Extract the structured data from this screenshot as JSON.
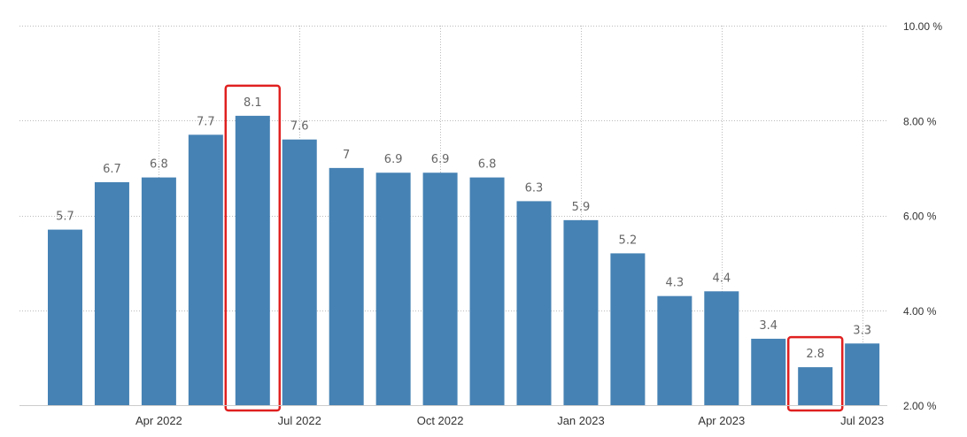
{
  "chart_data": {
    "type": "bar",
    "series": [
      {
        "values": [
          5.7,
          6.7,
          6.8,
          7.7,
          8.1,
          7.6,
          7,
          6.9,
          6.9,
          6.8,
          6.3,
          5.9,
          5.2,
          4.3,
          4.4,
          3.4,
          2.8,
          3.3
        ],
        "labels": [
          "5.7",
          "6.7",
          "6.8",
          "7.7",
          "8.1",
          "7.6",
          "7",
          "6.9",
          "6.9",
          "6.8",
          "6.3",
          "5.9",
          "5.2",
          "4.3",
          "4.4",
          "3.4",
          "2.8",
          "3.3"
        ]
      }
    ],
    "ylim": [
      2,
      10
    ],
    "y_ticks": [
      "10.00 %",
      "8.00 %",
      "6.00 %",
      "4.00 %",
      "2.00 %"
    ],
    "y_tick_values": [
      10,
      8,
      6,
      4,
      2
    ],
    "x_tick_labels": [
      "Apr 2022",
      "Jul 2022",
      "Oct 2022",
      "Jan 2023",
      "Apr 2023",
      "Jul 2023"
    ],
    "x_tick_bar_index": [
      2,
      5,
      8,
      11,
      14,
      17
    ],
    "highlighted_bars": [
      4,
      16
    ],
    "bar_color": "#4682b4",
    "highlight_color": "#e02020",
    "grid": true,
    "axis_position": "right"
  }
}
